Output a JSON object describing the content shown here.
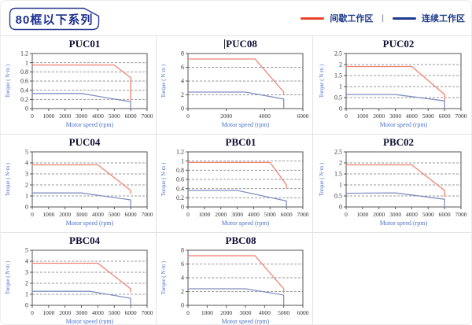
{
  "header": {
    "title": "80框以下系列",
    "legend": [
      {
        "label": "间歇工作区",
        "color": "#e8432a"
      },
      {
        "label": "连续工作区",
        "color": "#1e3c8c"
      }
    ],
    "legend_separator": "|"
  },
  "colors": {
    "badge_border": "#2b3990",
    "badge_text": "#1e2f8f",
    "plot_red": "#ef8272",
    "plot_blue": "#8191c1",
    "gridline": "#999999",
    "plot_border": "#555555",
    "tick_text": "#333333",
    "axis_label": "#4a72cc",
    "chart_title": "#101035",
    "cell_border": "#e3e3e3"
  },
  "chart_data": [
    {
      "type": "line",
      "title": "PUC01",
      "xlabel": "Motor speed (rpm)",
      "ylabel": "Torque ( N·m )",
      "xlim": [
        0,
        7000
      ],
      "xticks": [
        0,
        1000,
        2000,
        3000,
        4000,
        5000,
        6000,
        7000
      ],
      "ylim": [
        0,
        1.2
      ],
      "yticks": [
        0,
        0.2,
        0.4,
        0.6,
        0.8,
        1,
        1.2
      ],
      "grid": "horizontal-dashed",
      "legend_position": "none",
      "series": [
        {
          "name": "间歇工作区",
          "color": "#ef8272",
          "points": [
            [
              0,
              0.95
            ],
            [
              5000,
              0.95
            ],
            [
              6000,
              0.67
            ],
            [
              6000,
              0.17
            ]
          ]
        },
        {
          "name": "连续工作区",
          "color": "#8191c1",
          "points": [
            [
              0,
              0.33
            ],
            [
              3000,
              0.33
            ],
            [
              6000,
              0.15
            ],
            [
              6000,
              0
            ]
          ]
        }
      ]
    },
    {
      "type": "line",
      "title": "PUC08",
      "title_has_cursor": true,
      "xlabel": "Motor speed (rpm)",
      "ylabel": "Torque ( N·m )",
      "xlim": [
        0,
        6000
      ],
      "xticks": [
        0,
        2000,
        4000,
        6000
      ],
      "ylim": [
        0,
        8
      ],
      "yticks": [
        0,
        2,
        4,
        6,
        8
      ],
      "grid": "horizontal-dashed",
      "legend_position": "none",
      "series": [
        {
          "name": "间歇工作区",
          "color": "#ef8272",
          "points": [
            [
              0,
              7.2
            ],
            [
              3500,
              7.2
            ],
            [
              5000,
              2.4
            ],
            [
              5000,
              2.0
            ]
          ]
        },
        {
          "name": "连续工作区",
          "color": "#8191c1",
          "points": [
            [
              0,
              2.4
            ],
            [
              3000,
              2.4
            ],
            [
              5000,
              1.4
            ],
            [
              5000,
              0
            ]
          ]
        }
      ]
    },
    {
      "type": "line",
      "title": "PUC02",
      "xlabel": "Motor speed (rpm)",
      "ylabel": "Torque ( N·m )",
      "xlim": [
        0,
        7000
      ],
      "xticks": [
        0,
        1000,
        2000,
        3000,
        4000,
        5000,
        6000,
        7000
      ],
      "ylim": [
        0,
        2.5
      ],
      "yticks": [
        0,
        0.5,
        1,
        1.5,
        2,
        2.5
      ],
      "grid": "horizontal-dashed",
      "legend_position": "none",
      "series": [
        {
          "name": "间歇工作区",
          "color": "#ef8272",
          "points": [
            [
              0,
              1.91
            ],
            [
              4000,
              1.91
            ],
            [
              6000,
              0.64
            ],
            [
              6000,
              0.36
            ]
          ]
        },
        {
          "name": "连续工作区",
          "color": "#8191c1",
          "points": [
            [
              0,
              0.64
            ],
            [
              3000,
              0.64
            ],
            [
              6000,
              0.35
            ],
            [
              6000,
              0
            ]
          ]
        }
      ]
    },
    {
      "type": "line",
      "title": "PUC04",
      "xlabel": "Motor speed (rpm)",
      "ylabel": "Torque ( N·m )",
      "xlim": [
        0,
        7000
      ],
      "xticks": [
        0,
        1000,
        2000,
        3000,
        4000,
        5000,
        6000,
        7000
      ],
      "ylim": [
        0,
        5
      ],
      "yticks": [
        0,
        1,
        2,
        3,
        4,
        5
      ],
      "grid": "horizontal-dashed",
      "legend_position": "none",
      "series": [
        {
          "name": "间歇工作区",
          "color": "#ef8272",
          "points": [
            [
              0,
              3.82
            ],
            [
              4000,
              3.82
            ],
            [
              6000,
              1.5
            ],
            [
              6000,
              1.2
            ]
          ]
        },
        {
          "name": "连续工作区",
          "color": "#8191c1",
          "points": [
            [
              0,
              1.27
            ],
            [
              3000,
              1.27
            ],
            [
              6000,
              0.64
            ],
            [
              6000,
              0
            ]
          ]
        }
      ]
    },
    {
      "type": "line",
      "title": "PBC01",
      "xlabel": "Motor speed (rpm)",
      "ylabel": "Torque ( N·m )",
      "xlim": [
        0,
        7000
      ],
      "xticks": [
        0,
        1000,
        2000,
        3000,
        4000,
        5000,
        6000,
        7000
      ],
      "ylim": [
        0,
        1.2
      ],
      "yticks": [
        0,
        0.2,
        0.4,
        0.6,
        0.8,
        1,
        1.2
      ],
      "grid": "horizontal-dashed",
      "legend_position": "none",
      "series": [
        {
          "name": "间歇工作区",
          "color": "#ef8272",
          "points": [
            [
              0,
              0.97
            ],
            [
              5000,
              0.97
            ],
            [
              6000,
              0.48
            ],
            [
              6000,
              0.4
            ]
          ]
        },
        {
          "name": "连续工作区",
          "color": "#8191c1",
          "points": [
            [
              0,
              0.36
            ],
            [
              3000,
              0.36
            ],
            [
              6000,
              0.13
            ],
            [
              6000,
              0
            ]
          ]
        }
      ]
    },
    {
      "type": "line",
      "title": "PBC02",
      "xlabel": "Motor speed (rpm)",
      "ylabel": "Torque ( N·m )",
      "xlim": [
        0,
        7000
      ],
      "xticks": [
        0,
        1000,
        2000,
        3000,
        4000,
        5000,
        6000,
        7000
      ],
      "ylim": [
        0,
        2.5
      ],
      "yticks": [
        0,
        0.5,
        1,
        1.5,
        2,
        2.5
      ],
      "grid": "horizontal-dashed",
      "legend_position": "none",
      "series": [
        {
          "name": "间歇工作区",
          "color": "#ef8272",
          "points": [
            [
              0,
              1.91
            ],
            [
              4000,
              1.91
            ],
            [
              6000,
              0.75
            ],
            [
              6000,
              0.45
            ]
          ]
        },
        {
          "name": "连续工作区",
          "color": "#8191c1",
          "points": [
            [
              0,
              0.62
            ],
            [
              3000,
              0.64
            ],
            [
              6000,
              0.35
            ],
            [
              6000,
              0
            ]
          ]
        }
      ]
    },
    {
      "type": "line",
      "title": "PBC04",
      "xlabel": "Motor speed (rpm)",
      "ylabel": "Torque ( N·m )",
      "xlim": [
        0,
        7000
      ],
      "xticks": [
        0,
        1000,
        2000,
        3000,
        4000,
        5000,
        6000,
        7000
      ],
      "ylim": [
        0,
        5
      ],
      "yticks": [
        0,
        1,
        2,
        3,
        4,
        5
      ],
      "grid": "horizontal-dashed",
      "legend_position": "none",
      "series": [
        {
          "name": "间歇工作区",
          "color": "#ef8272",
          "points": [
            [
              0,
              3.82
            ],
            [
              4000,
              3.82
            ],
            [
              6000,
              1.5
            ],
            [
              6000,
              1.2
            ]
          ]
        },
        {
          "name": "连续工作区",
          "color": "#8191c1",
          "points": [
            [
              0,
              1.27
            ],
            [
              3500,
              1.27
            ],
            [
              6000,
              0.64
            ],
            [
              6000,
              0
            ]
          ]
        }
      ]
    },
    {
      "type": "line",
      "title": "PBC08",
      "xlabel": "Motor speed (rpm)",
      "ylabel": "Torque ( N·m )",
      "xlim": [
        0,
        6000
      ],
      "xticks": [
        0,
        1000,
        2000,
        3000,
        4000,
        5000,
        6000
      ],
      "ylim": [
        0,
        8
      ],
      "yticks": [
        0,
        2,
        4,
        6,
        8
      ],
      "grid": "horizontal-dashed",
      "legend_position": "none",
      "series": [
        {
          "name": "间歇工作区",
          "color": "#ef8272",
          "points": [
            [
              0,
              7.2
            ],
            [
              3500,
              7.2
            ],
            [
              5000,
              2.4
            ],
            [
              5000,
              1.8
            ]
          ]
        },
        {
          "name": "连续工作区",
          "color": "#8191c1",
          "points": [
            [
              0,
              2.4
            ],
            [
              3000,
              2.4
            ],
            [
              5000,
              1.5
            ],
            [
              5000,
              0
            ]
          ]
        }
      ]
    }
  ]
}
